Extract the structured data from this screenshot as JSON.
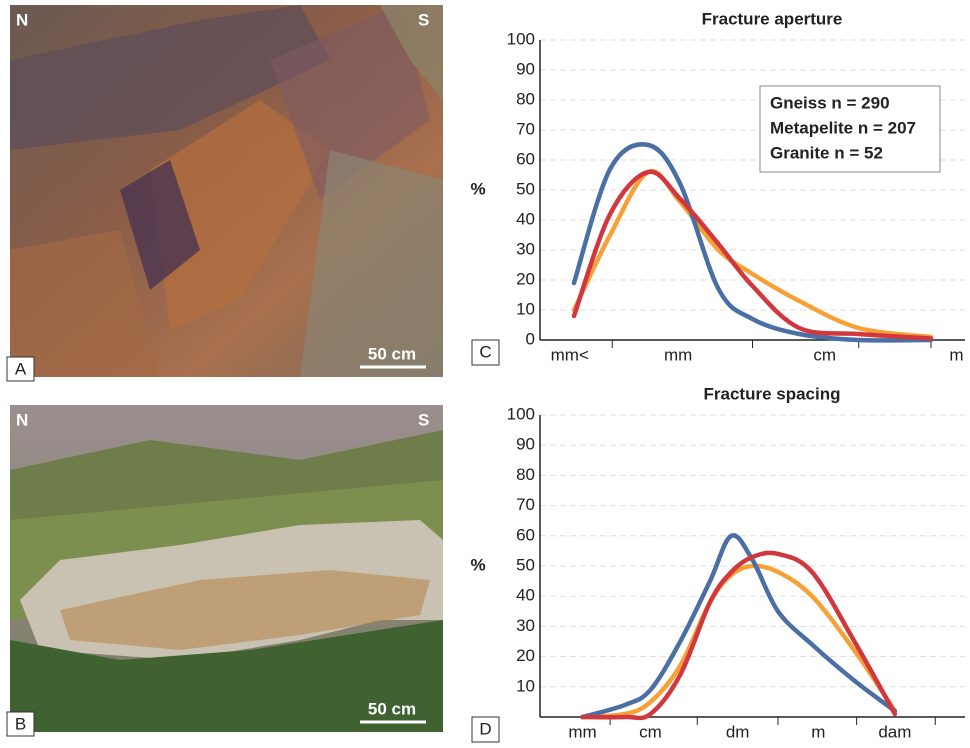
{
  "panels": {
    "A": {
      "label": "A",
      "north": "N",
      "south": "S",
      "scale": "50 cm"
    },
    "B": {
      "label": "B",
      "north": "N",
      "south": "S",
      "scale": "50 cm"
    },
    "C": {
      "label": "C"
    },
    "D": {
      "label": "D"
    }
  },
  "chart_data": [
    {
      "type": "line",
      "title": "Fracture aperture",
      "ylabel": "%",
      "x": [
        0.8,
        1.65,
        2.55,
        3.3,
        4.2,
        5,
        6.1,
        7.5,
        9.2
      ],
      "xlim": [
        0,
        10
      ],
      "xticks": [
        {
          "value": 0.7,
          "label": "mm<"
        },
        {
          "value": 3.25,
          "label": "mm"
        },
        {
          "value": 6.7,
          "label": "cm"
        },
        {
          "value": 9.8,
          "label": "m"
        }
      ],
      "xminorticks": [
        1.7,
        5,
        7.5,
        9.2
      ],
      "ylim": [
        0,
        100
      ],
      "yticks": [
        0,
        10,
        20,
        30,
        40,
        50,
        60,
        70,
        80,
        90,
        100
      ],
      "grid": true,
      "legend": "upper right",
      "series": [
        {
          "name": "Gneiss n = 290",
          "color": "#f7a035",
          "values": [
            10,
            35,
            56,
            46,
            30,
            22,
            13,
            4,
            1
          ]
        },
        {
          "name": "Metapelite n = 207",
          "color": "#4a6fa5",
          "values": [
            19,
            57,
            65,
            52,
            17,
            7,
            2,
            0,
            0
          ]
        },
        {
          "name": "Granite n = 52",
          "color": "#d1383d",
          "values": [
            8,
            42,
            56,
            47,
            32,
            18,
            4,
            2,
            0.5
          ]
        }
      ]
    },
    {
      "type": "line",
      "title": "Fracture spacing",
      "ylabel": "%",
      "x": [
        1.0,
        2.0,
        2.6,
        3.3,
        4.0,
        4.5,
        5.0,
        5.6,
        6.4,
        7.4,
        8.35
      ],
      "xlim": [
        0,
        10
      ],
      "xticks": [
        {
          "value": 1.0,
          "label": "mm"
        },
        {
          "value": 2.6,
          "label": "cm"
        },
        {
          "value": 4.65,
          "label": "dm"
        },
        {
          "value": 6.55,
          "label": "m"
        },
        {
          "value": 8.35,
          "label": "dam"
        }
      ],
      "xminorticks": [
        1.65,
        3.7,
        5.6,
        7.45,
        9.3
      ],
      "ylim": [
        0,
        100
      ],
      "yticks": [
        10,
        20,
        30,
        40,
        50,
        60,
        70,
        80,
        90,
        100
      ],
      "grid": true,
      "series": [
        {
          "color": "#f7a035",
          "values": [
            0,
            1,
            5,
            17,
            38,
            47,
            50,
            48,
            40,
            22,
            2
          ]
        },
        {
          "color": "#4a6fa5",
          "values": [
            0,
            4,
            9,
            25,
            45,
            60,
            52,
            35,
            24,
            12,
            2
          ]
        },
        {
          "color": "#d1383d",
          "values": [
            0,
            0,
            1,
            14,
            38,
            48,
            53,
            54,
            48,
            25,
            1
          ]
        }
      ]
    }
  ]
}
